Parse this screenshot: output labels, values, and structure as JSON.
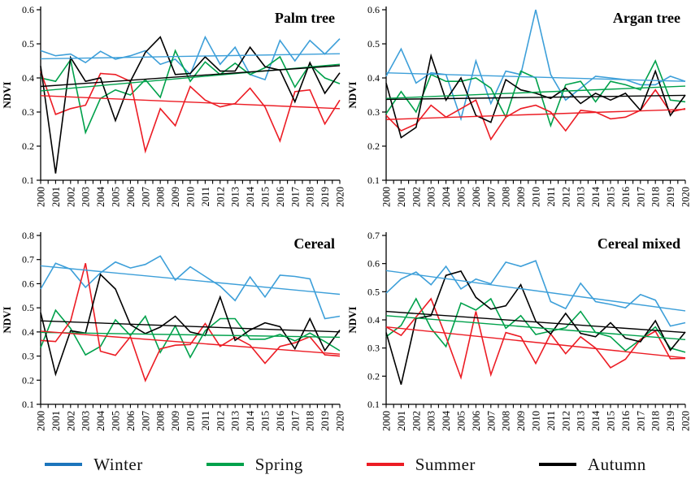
{
  "page": {
    "background": "#ffffff"
  },
  "ylabel": "NDVI",
  "x_labels": [
    "2000",
    "2001",
    "2002",
    "2003",
    "2004",
    "2005",
    "2006",
    "2007",
    "2008",
    "2009",
    "2010",
    "2011",
    "2012",
    "2013",
    "2014",
    "2015",
    "2016",
    "2017",
    "2018",
    "2019",
    "2020"
  ],
  "legend": {
    "items": [
      {
        "label": "Winter",
        "color": "#1C75BC"
      },
      {
        "label": "Spring",
        "color": "#00A14B"
      },
      {
        "label": "Summer",
        "color": "#EC1C24"
      },
      {
        "label": "Autumn",
        "color": "#000000"
      }
    ]
  },
  "chart_data": [
    {
      "type": "line",
      "title": "Palm tree",
      "ylabel": "NDVI",
      "xlabel": "",
      "ylim": [
        0.1,
        0.6
      ],
      "ytick_step": 0.1,
      "grid": false,
      "legend_position": "bottom-shared",
      "x": [
        2000,
        2001,
        2002,
        2003,
        2004,
        2005,
        2006,
        2007,
        2008,
        2009,
        2010,
        2011,
        2012,
        2013,
        2014,
        2015,
        2016,
        2017,
        2018,
        2019,
        2020
      ],
      "series": [
        {
          "name": "Winter",
          "color": "#3D9FD9",
          "values": [
            0.48,
            0.465,
            0.47,
            0.445,
            0.478,
            0.455,
            0.465,
            0.48,
            0.44,
            0.455,
            0.41,
            0.52,
            0.44,
            0.49,
            0.41,
            0.395,
            0.51,
            0.45,
            0.51,
            0.47,
            0.515
          ],
          "trend": [
            0.456,
            0.471
          ]
        },
        {
          "name": "Spring",
          "color": "#00A14B",
          "values": [
            0.4,
            0.39,
            0.453,
            0.24,
            0.34,
            0.365,
            0.35,
            0.395,
            0.343,
            0.48,
            0.39,
            0.447,
            0.41,
            0.443,
            0.41,
            0.43,
            0.462,
            0.373,
            0.44,
            0.4,
            0.383
          ],
          "trend": [
            0.362,
            0.44
          ]
        },
        {
          "name": "Summer",
          "color": "#EC1C24",
          "values": [
            0.42,
            0.293,
            0.31,
            0.32,
            0.413,
            0.41,
            0.39,
            0.185,
            0.31,
            0.26,
            0.375,
            0.335,
            0.315,
            0.325,
            0.37,
            0.315,
            0.215,
            0.36,
            0.365,
            0.265,
            0.335
          ],
          "trend": [
            0.348,
            0.31
          ]
        },
        {
          "name": "Autumn",
          "color": "#000000",
          "values": [
            0.435,
            0.12,
            0.46,
            0.39,
            0.4,
            0.275,
            0.39,
            0.475,
            0.52,
            0.41,
            0.413,
            0.462,
            0.42,
            0.42,
            0.49,
            0.433,
            0.423,
            0.33,
            0.445,
            0.355,
            0.415
          ],
          "trend": [
            0.375,
            0.436
          ]
        }
      ]
    },
    {
      "type": "line",
      "title": "Argan tree",
      "ylabel": "NDVI",
      "xlabel": "",
      "ylim": [
        0.1,
        0.6
      ],
      "ytick_step": 0.1,
      "grid": false,
      "legend_position": "bottom-shared",
      "x": [
        2000,
        2001,
        2002,
        2003,
        2004,
        2005,
        2006,
        2007,
        2008,
        2009,
        2010,
        2011,
        2012,
        2013,
        2014,
        2015,
        2016,
        2017,
        2018,
        2019,
        2020
      ],
      "series": [
        {
          "name": "Winter",
          "color": "#3D9FD9",
          "values": [
            0.405,
            0.485,
            0.385,
            0.415,
            0.41,
            0.28,
            0.45,
            0.325,
            0.42,
            0.41,
            0.6,
            0.41,
            0.335,
            0.37,
            0.405,
            0.4,
            0.395,
            0.38,
            0.38,
            0.405,
            0.39
          ],
          "trend": [
            0.415,
            0.39
          ]
        },
        {
          "name": "Spring",
          "color": "#00A14B",
          "values": [
            0.295,
            0.36,
            0.3,
            0.41,
            0.39,
            0.39,
            0.4,
            0.37,
            0.285,
            0.42,
            0.4,
            0.26,
            0.38,
            0.39,
            0.33,
            0.39,
            0.38,
            0.365,
            0.45,
            0.335,
            0.33
          ],
          "trend": [
            0.34,
            0.376
          ]
        },
        {
          "name": "Summer",
          "color": "#EC1C24",
          "values": [
            0.29,
            0.245,
            0.265,
            0.32,
            0.285,
            0.31,
            0.335,
            0.22,
            0.285,
            0.31,
            0.32,
            0.3,
            0.245,
            0.305,
            0.3,
            0.28,
            0.285,
            0.305,
            0.365,
            0.3,
            0.31
          ],
          "trend": [
            0.278,
            0.308
          ]
        },
        {
          "name": "Autumn",
          "color": "#000000",
          "values": [
            0.385,
            0.225,
            0.255,
            0.465,
            0.335,
            0.4,
            0.29,
            0.27,
            0.395,
            0.365,
            0.355,
            0.34,
            0.37,
            0.325,
            0.355,
            0.335,
            0.355,
            0.305,
            0.42,
            0.29,
            0.35
          ],
          "trend": [
            0.337,
            0.349
          ]
        }
      ]
    },
    {
      "type": "line",
      "title": "Cereal",
      "ylabel": "NDVI",
      "xlabel": "",
      "ylim": [
        0.1,
        0.8
      ],
      "ytick_step": 0.1,
      "grid": false,
      "legend_position": "bottom-shared",
      "x": [
        2000,
        2001,
        2002,
        2003,
        2004,
        2005,
        2006,
        2007,
        2008,
        2009,
        2010,
        2011,
        2012,
        2013,
        2014,
        2015,
        2016,
        2017,
        2018,
        2019,
        2020
      ],
      "series": [
        {
          "name": "Winter",
          "color": "#3D9FD9",
          "values": [
            0.578,
            0.685,
            0.66,
            0.585,
            0.645,
            0.69,
            0.665,
            0.68,
            0.715,
            0.615,
            0.67,
            0.63,
            0.59,
            0.53,
            0.628,
            0.545,
            0.635,
            0.63,
            0.62,
            0.455,
            0.465
          ],
          "trend": [
            0.674,
            0.556
          ]
        },
        {
          "name": "Spring",
          "color": "#00A14B",
          "values": [
            0.335,
            0.49,
            0.415,
            0.305,
            0.34,
            0.45,
            0.385,
            0.465,
            0.315,
            0.425,
            0.295,
            0.405,
            0.455,
            0.455,
            0.37,
            0.37,
            0.39,
            0.363,
            0.395,
            0.36,
            0.322
          ],
          "trend": [
            0.398,
            0.378
          ]
        },
        {
          "name": "Summer",
          "color": "#EC1C24",
          "values": [
            0.365,
            0.36,
            0.445,
            0.685,
            0.32,
            0.303,
            0.38,
            0.198,
            0.33,
            0.345,
            0.348,
            0.435,
            0.34,
            0.378,
            0.345,
            0.27,
            0.34,
            0.355,
            0.38,
            0.305,
            0.3
          ],
          "trend": [
            0.403,
            0.308
          ]
        },
        {
          "name": "Autumn",
          "color": "#000000",
          "values": [
            0.48,
            0.225,
            0.405,
            0.395,
            0.638,
            0.578,
            0.43,
            0.393,
            0.42,
            0.465,
            0.4,
            0.385,
            0.545,
            0.365,
            0.408,
            0.438,
            0.422,
            0.33,
            0.455,
            0.323,
            0.408
          ],
          "trend": [
            0.446,
            0.4
          ]
        }
      ]
    },
    {
      "type": "line",
      "title": "Cereal mixed",
      "ylabel": "NDVI",
      "xlabel": "",
      "ylim": [
        0.1,
        0.7
      ],
      "ytick_step": 0.1,
      "grid": false,
      "legend_position": "bottom-shared",
      "x": [
        2000,
        2001,
        2002,
        2003,
        2004,
        2005,
        2006,
        2007,
        2008,
        2009,
        2010,
        2011,
        2012,
        2013,
        2014,
        2015,
        2016,
        2017,
        2018,
        2019,
        2020
      ],
      "series": [
        {
          "name": "Winter",
          "color": "#3D9FD9",
          "values": [
            0.495,
            0.545,
            0.57,
            0.525,
            0.59,
            0.51,
            0.545,
            0.528,
            0.605,
            0.59,
            0.61,
            0.465,
            0.44,
            0.53,
            0.465,
            0.455,
            0.443,
            0.49,
            0.47,
            0.378,
            0.39
          ],
          "trend": [
            0.575,
            0.432
          ]
        },
        {
          "name": "Spring",
          "color": "#00A14B",
          "values": [
            0.34,
            0.38,
            0.475,
            0.37,
            0.305,
            0.46,
            0.435,
            0.475,
            0.37,
            0.415,
            0.348,
            0.36,
            0.372,
            0.43,
            0.355,
            0.34,
            0.29,
            0.33,
            0.375,
            0.3,
            0.285
          ],
          "trend": [
            0.415,
            0.33
          ]
        },
        {
          "name": "Summer",
          "color": "#EC1C24",
          "values": [
            0.375,
            0.345,
            0.41,
            0.475,
            0.34,
            0.195,
            0.43,
            0.205,
            0.355,
            0.34,
            0.245,
            0.35,
            0.28,
            0.34,
            0.3,
            0.23,
            0.26,
            0.33,
            0.36,
            0.262,
            0.263
          ],
          "trend": [
            0.375,
            0.265
          ]
        },
        {
          "name": "Autumn",
          "color": "#000000",
          "values": [
            0.355,
            0.17,
            0.405,
            0.415,
            0.558,
            0.573,
            0.48,
            0.438,
            0.45,
            0.525,
            0.395,
            0.35,
            0.423,
            0.352,
            0.34,
            0.39,
            0.335,
            0.322,
            0.397,
            0.292,
            0.357
          ],
          "trend": [
            0.43,
            0.355
          ]
        }
      ]
    }
  ]
}
